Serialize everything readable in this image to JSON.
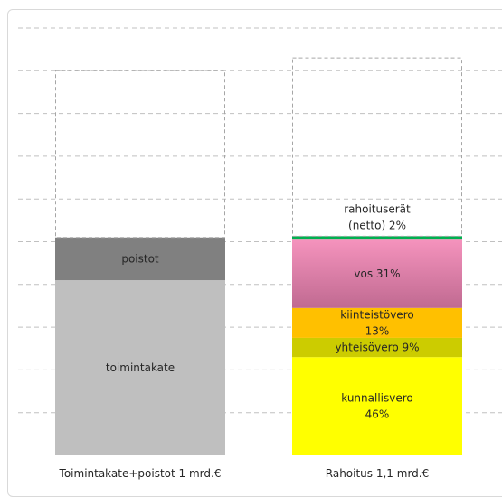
{
  "chart_data": {
    "type": "bar",
    "subtype": "stacked",
    "categories": [
      "Toimintakate+poistot 1 mrd.€",
      "Rahoitus 1,1 mrd.€"
    ],
    "ylim": [
      0,
      100
    ],
    "grid": true,
    "legend": "none",
    "stacks": [
      {
        "category": "Toimintakate+poistot 1 mrd.€",
        "segments": [
          {
            "name": "toimintakate",
            "label_lines": [
              "toimintakate"
            ],
            "value": 41,
            "color": "#bfbfbf"
          },
          {
            "name": "poistot",
            "label_lines": [
              "poistot"
            ],
            "value": 10,
            "color": "#808080"
          },
          {
            "name": "",
            "label_lines": [],
            "value": 39,
            "color": "none",
            "dashed": true
          }
        ]
      },
      {
        "category": "Rahoitus 1,1 mrd.€",
        "segments": [
          {
            "name": "kunnallisvero",
            "label_lines": [
              "kunnallisvero",
              "46%"
            ],
            "value": 23,
            "color": "#ffff00"
          },
          {
            "name": "yhteisövero",
            "label_lines": [
              "yhteisövero 9%"
            ],
            "value": 4.5,
            "color": "#cccc00"
          },
          {
            "name": "kiinteistövero",
            "label_lines": [
              "kiinteistövero",
              "13%"
            ],
            "value": 7,
            "color": "#ffc000"
          },
          {
            "name": "vos",
            "label_lines": [
              "vos 31%"
            ],
            "value": 16,
            "color": "#e889b0",
            "gradient_to": "#c36c93"
          },
          {
            "name": "rahoituserät",
            "label_lines": [
              "rahoituserät",
              "(netto) 2%"
            ],
            "value": 0.8,
            "color": "#00b050",
            "label_above": true
          },
          {
            "name": "",
            "label_lines": [],
            "value": 41.7,
            "color": "none",
            "dashed": true
          }
        ]
      }
    ]
  }
}
